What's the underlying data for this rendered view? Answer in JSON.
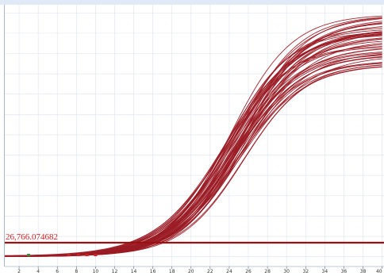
{
  "chart_data": {
    "type": "line",
    "title": "",
    "xlabel": "",
    "ylabel": "",
    "x_ticks": [
      2,
      4,
      6,
      8,
      10,
      12,
      14,
      16,
      18,
      20,
      22,
      24,
      26,
      28,
      30,
      32,
      34,
      36,
      38,
      40
    ],
    "xlim": [
      0.5,
      40.2
    ],
    "threshold": {
      "value": 26766.074682,
      "label": "26,766.074682"
    },
    "grid": true,
    "legend": "none",
    "series_count": 48,
    "curve_model": {
      "baseline_y_range": [
        0,
        1
      ],
      "plateau_y_range": [
        232,
        300
      ],
      "midpoint_x_range": [
        23.6,
        25.6
      ],
      "slope_range": [
        3.2,
        3.8
      ]
    },
    "markers": [
      {
        "x": 3.0,
        "color": "#3a8a3a"
      },
      {
        "x": 7.2,
        "color": "#cc2222"
      },
      {
        "x": 8.2,
        "color": "#cc2222"
      },
      {
        "x": 9.1,
        "color": "#cc2222"
      },
      {
        "x": 10.0,
        "color": "#cc2222"
      }
    ],
    "colors": {
      "series": "#9b1b25",
      "threshold_line": "#9b1010",
      "threshold_text": "#cc1f1f",
      "grid": "#dde3ee",
      "border": "#a9b8d0",
      "top_bar": "#dfeaf6"
    }
  }
}
